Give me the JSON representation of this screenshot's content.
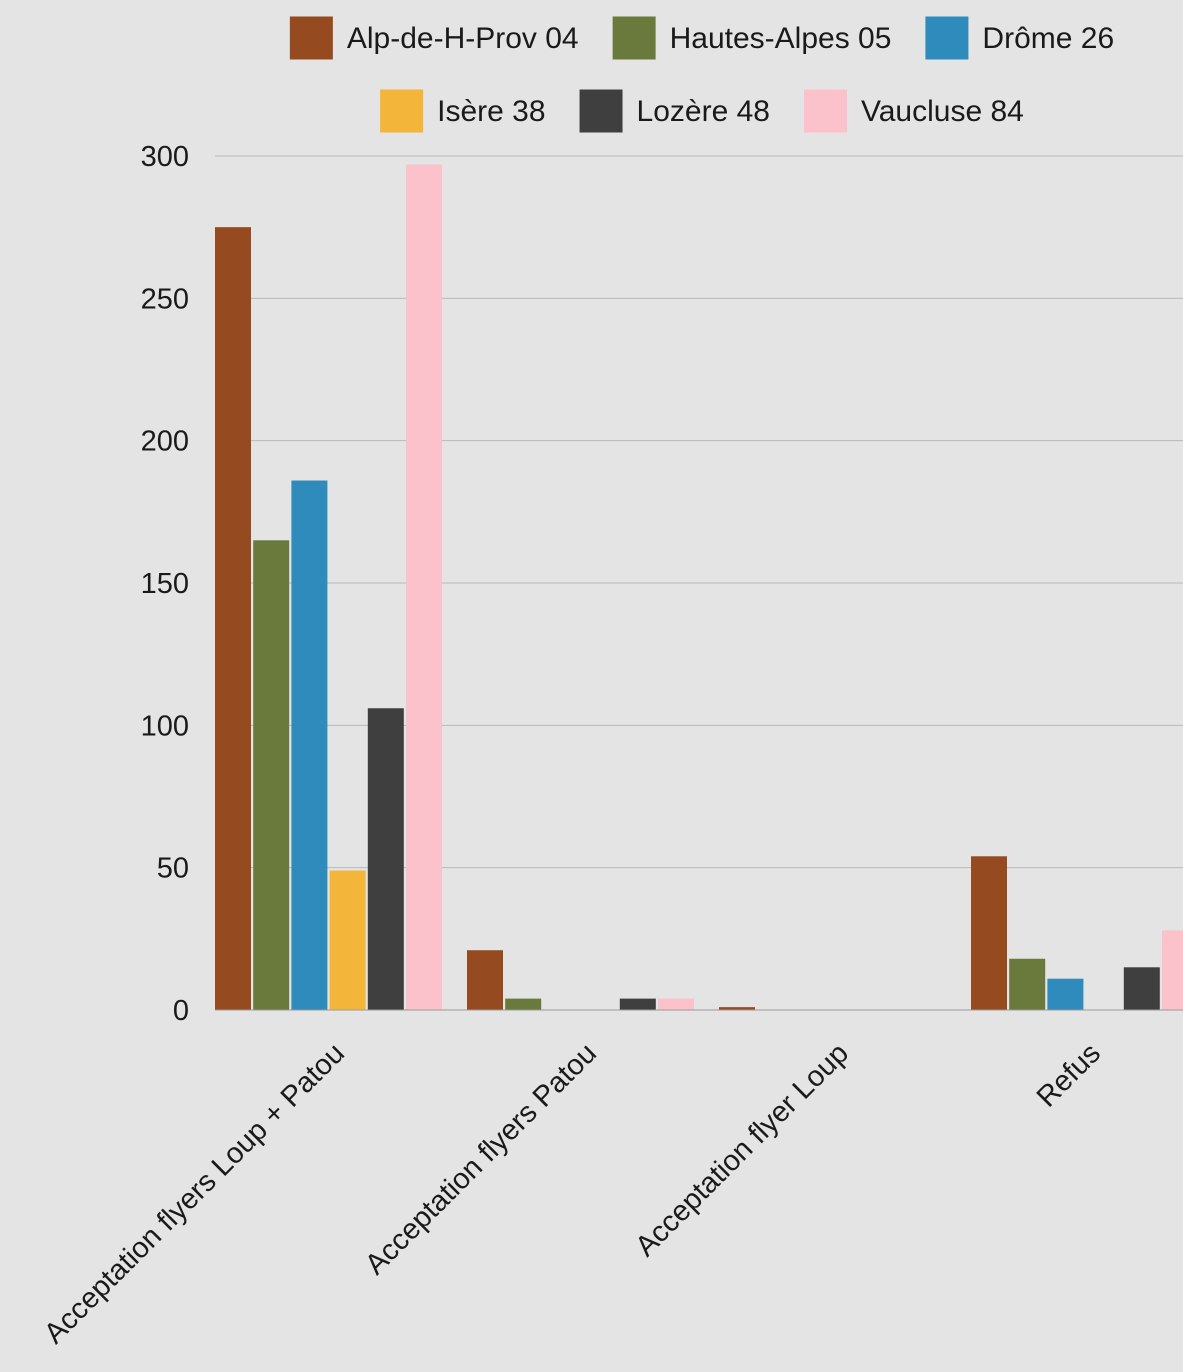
{
  "chart_data": {
    "type": "bar",
    "title": "",
    "xlabel": "",
    "ylabel": "",
    "ylim": [
      0,
      300
    ],
    "yticks": [
      0,
      50,
      100,
      150,
      200,
      250,
      300
    ],
    "grid": true,
    "legend_position": "top",
    "categories": [
      "Acceptation flyers Loup + Patou",
      "Acceptation flyers Patou",
      "Acceptation flyer Loup",
      "Refus"
    ],
    "series": [
      {
        "name": "Alp-de-H-Prov 04",
        "color": "#954b1f",
        "values": [
          275,
          21,
          1,
          54
        ]
      },
      {
        "name": "Hautes-Alpes 05",
        "color": "#6a7a3c",
        "values": [
          165,
          4,
          0,
          18
        ]
      },
      {
        "name": "Drôme 26",
        "color": "#2e8bbb",
        "values": [
          186,
          0,
          0,
          11
        ]
      },
      {
        "name": "Isère 38",
        "color": "#f4b53b",
        "values": [
          49,
          0,
          0,
          0
        ]
      },
      {
        "name": "Lozère 48",
        "color": "#3f3f3f",
        "values": [
          106,
          4,
          0,
          15
        ]
      },
      {
        "name": "Vaucluse 84",
        "color": "#fbc2cb",
        "values": [
          297,
          4,
          0,
          28
        ]
      }
    ]
  }
}
